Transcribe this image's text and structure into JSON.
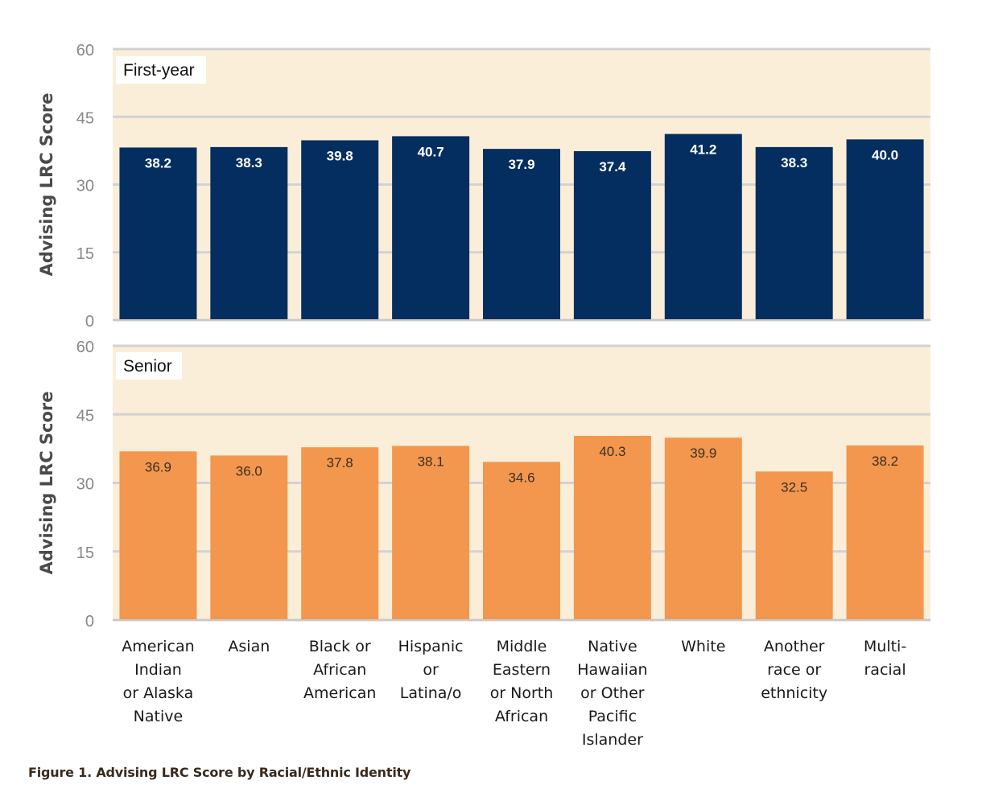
{
  "caption": "Figure 1. Advising LRC Score by Racial/Ethnic Identity",
  "chart_data": [
    {
      "type": "bar",
      "title": "First-year",
      "ylabel": "Advising LRC Score",
      "ylim": [
        0,
        60
      ],
      "yticks": [
        0,
        15,
        30,
        45,
        60
      ],
      "grid": true,
      "bar_color": "#042e5f",
      "label_color": "#ffffff",
      "background": "#fbeed9",
      "categories": [
        "American Indian or Alaska Native",
        "Asian",
        "Black or African American",
        "Hispanic or Latina/o",
        "Middle Eastern or North African",
        "Native Hawaiian or Other Pacific Islander",
        "White",
        "Another race or ethnicity",
        "Multi-racial"
      ],
      "values": [
        38.2,
        38.3,
        39.8,
        40.7,
        37.9,
        37.4,
        41.2,
        38.3,
        40.0
      ],
      "value_labels": [
        "38.2",
        "38.3",
        "39.8",
        "40.7",
        "37.9",
        "37.4",
        "41.2",
        "38.3",
        "40.0"
      ]
    },
    {
      "type": "bar",
      "title": "Senior",
      "ylabel": "Advising LRC Score",
      "ylim": [
        0,
        60
      ],
      "yticks": [
        0,
        15,
        30,
        45,
        60
      ],
      "grid": true,
      "bar_color": "#f2974d",
      "label_color": "#3b2f26",
      "background": "#fbeed9",
      "categories": [
        "American Indian or Alaska Native",
        "Asian",
        "Black or African American",
        "Hispanic or Latina/o",
        "Middle Eastern or North African",
        "Native Hawaiian or Other Pacific Islander",
        "White",
        "Another race or ethnicity",
        "Multi-racial"
      ],
      "values": [
        36.9,
        36.0,
        37.8,
        38.1,
        34.6,
        40.3,
        39.9,
        32.5,
        38.2
      ],
      "value_labels": [
        "36.9",
        "36.0",
        "37.8",
        "38.1",
        "34.6",
        "40.3",
        "39.9",
        "32.5",
        "38.2"
      ]
    }
  ],
  "x_tick_lines": [
    [
      "American",
      "Indian",
      "or Alaska",
      "Native"
    ],
    [
      "Asian"
    ],
    [
      "Black or",
      "African",
      "American"
    ],
    [
      "Hispanic",
      "or",
      "Latina/o"
    ],
    [
      "Middle",
      "Eastern",
      "or North",
      "African"
    ],
    [
      "Native",
      "Hawaiian",
      "or Other",
      "Pacific",
      "Islander"
    ],
    [
      "White"
    ],
    [
      "Another",
      "race or",
      "ethnicity"
    ],
    [
      "Multi-",
      "racial"
    ]
  ]
}
